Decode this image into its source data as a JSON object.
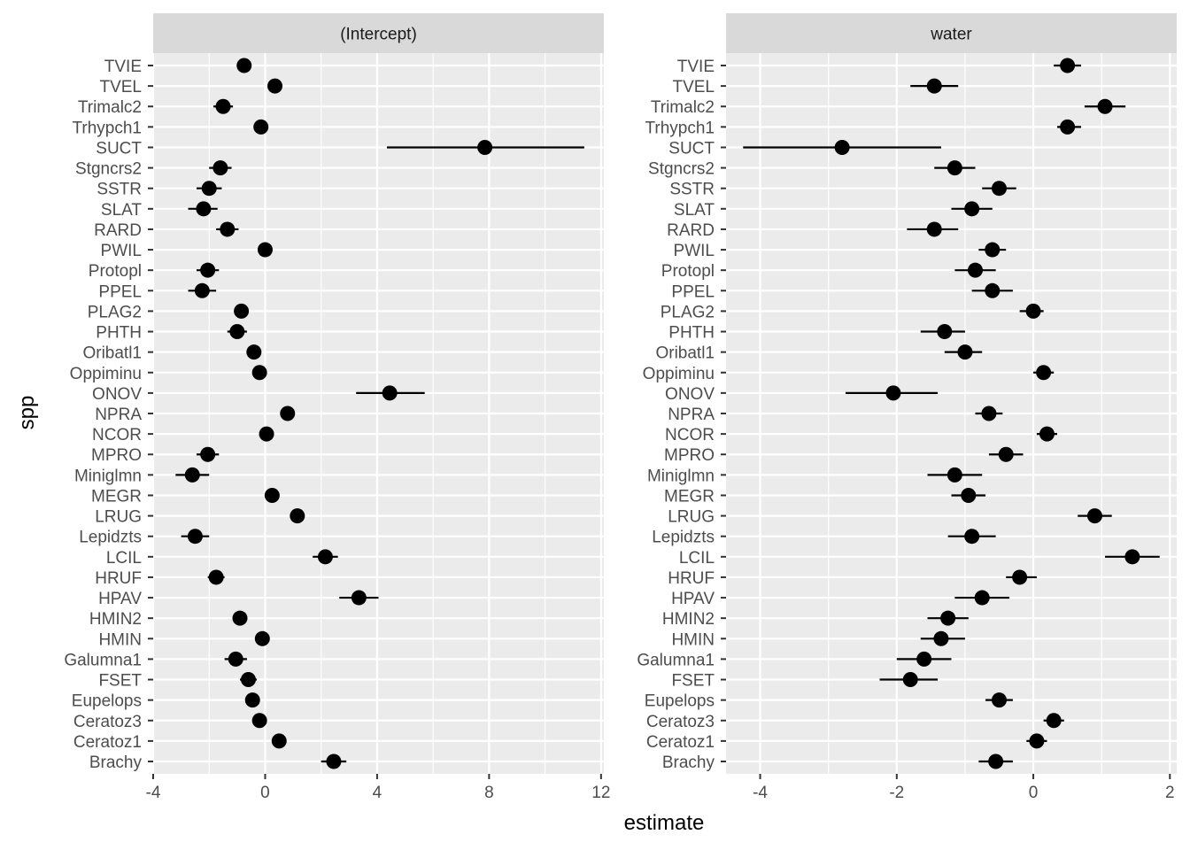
{
  "chart_data": {
    "type": "scatter",
    "subtype": "forest-plot-point-with-error-bars",
    "facets": [
      "(Intercept)",
      "water"
    ],
    "xlabel": "estimate",
    "ylabel": "spp",
    "grid": true,
    "categories": [
      "Brachy",
      "Ceratoz1",
      "Ceratoz3",
      "Eupelops",
      "FSET",
      "Galumna1",
      "HMIN",
      "HMIN2",
      "HPAV",
      "HRUF",
      "LCIL",
      "Lepidzts",
      "LRUG",
      "MEGR",
      "Miniglmn",
      "MPRO",
      "NCOR",
      "NPRA",
      "ONOV",
      "Oppiminu",
      "Oribatl1",
      "PHTH",
      "PLAG2",
      "PPEL",
      "Protopl",
      "PWIL",
      "RARD",
      "SLAT",
      "SSTR",
      "Stgncrs2",
      "SUCT",
      "Trhypch1",
      "Trimalc2",
      "TVEL",
      "TVIE"
    ],
    "panels": [
      {
        "name": "(Intercept)",
        "xlim": [
          -4,
          12.1
        ],
        "xticks": [
          -4,
          0,
          4,
          8,
          12
        ],
        "xtick_labels": [
          "-4",
          "0",
          "4",
          "8",
          "12"
        ],
        "estimate": [
          2.45,
          0.5,
          -0.2,
          -0.45,
          -0.6,
          -1.05,
          -0.1,
          -0.9,
          3.35,
          -1.75,
          2.15,
          -2.5,
          1.15,
          0.25,
          -2.6,
          -2.05,
          0.05,
          0.8,
          4.45,
          -0.2,
          -0.4,
          -1.0,
          -0.85,
          -2.25,
          -2.05,
          0.0,
          -1.35,
          -2.2,
          -2.0,
          -1.6,
          7.85,
          -0.15,
          -1.5,
          0.35,
          -0.75
        ],
        "lower": [
          2.0,
          0.35,
          -0.35,
          -0.65,
          -0.9,
          -1.45,
          -0.25,
          -1.15,
          2.65,
          -2.05,
          1.7,
          -3.0,
          0.95,
          0.1,
          -3.2,
          -2.45,
          -0.1,
          0.6,
          3.25,
          -0.3,
          -0.6,
          -1.35,
          -1.05,
          -2.75,
          -2.45,
          -0.15,
          -1.75,
          -2.75,
          -2.45,
          -2.0,
          4.35,
          -0.3,
          -1.85,
          0.2,
          -0.95
        ],
        "upper": [
          2.9,
          0.65,
          -0.05,
          -0.25,
          -0.3,
          -0.65,
          0.05,
          -0.65,
          4.05,
          -1.45,
          2.6,
          -2.0,
          1.35,
          0.4,
          -2.0,
          -1.65,
          0.2,
          1.0,
          5.7,
          -0.1,
          -0.2,
          -0.65,
          -0.65,
          -1.75,
          -1.65,
          0.15,
          -0.95,
          -1.7,
          -1.55,
          -1.2,
          11.4,
          0.0,
          -1.15,
          0.5,
          -0.55
        ]
      },
      {
        "name": "water",
        "xlim": [
          -4.5,
          2.1
        ],
        "xticks": [
          -4,
          -2,
          0,
          2
        ],
        "xtick_labels": [
          "-4",
          "-2",
          "0",
          "2"
        ],
        "estimate": [
          -0.55,
          0.05,
          0.3,
          -0.5,
          -1.8,
          -1.6,
          -1.35,
          -1.25,
          -0.75,
          -0.2,
          1.45,
          -0.9,
          0.9,
          -0.95,
          -1.15,
          -0.4,
          0.2,
          -0.65,
          -2.05,
          0.15,
          -1.0,
          -1.3,
          0.0,
          -0.6,
          -0.85,
          -0.6,
          -1.45,
          -0.9,
          -0.5,
          -1.15,
          -2.8,
          0.5,
          1.05,
          -1.45,
          0.5
        ],
        "lower": [
          -0.8,
          -0.1,
          0.15,
          -0.7,
          -2.25,
          -2.0,
          -1.65,
          -1.55,
          -1.15,
          -0.4,
          1.05,
          -1.25,
          0.65,
          -1.2,
          -1.55,
          -0.65,
          0.05,
          -0.85,
          -2.75,
          0.0,
          -1.3,
          -1.65,
          -0.2,
          -0.9,
          -1.15,
          -0.8,
          -1.85,
          -1.2,
          -0.75,
          -1.45,
          -4.25,
          0.35,
          0.75,
          -1.8,
          0.3
        ],
        "upper": [
          -0.3,
          0.2,
          0.45,
          -0.3,
          -1.4,
          -1.2,
          -1.0,
          -0.95,
          -0.35,
          0.05,
          1.85,
          -0.55,
          1.15,
          -0.7,
          -0.75,
          -0.15,
          0.35,
          -0.45,
          -1.4,
          0.3,
          -0.75,
          -1.0,
          0.15,
          -0.3,
          -0.55,
          -0.4,
          -1.1,
          -0.6,
          -0.25,
          -0.85,
          -1.35,
          0.7,
          1.35,
          -1.1,
          0.7
        ]
      }
    ]
  }
}
